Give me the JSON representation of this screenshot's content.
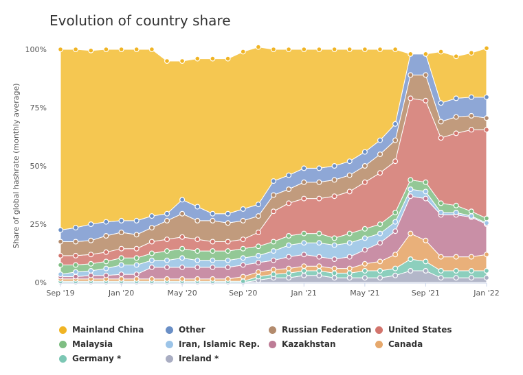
{
  "title": "Evolution of country share",
  "chart_data": {
    "type": "area",
    "stacked": true,
    "title": "Evolution of country share",
    "ylabel": "Share of global hashrate (monthly average)",
    "ylim": [
      0,
      100
    ],
    "yticks": [
      "0%",
      "25%",
      "50%",
      "75%",
      "100%"
    ],
    "xtick_labels": [
      "Sep '19",
      "Jan '20",
      "May '20",
      "Sep '20",
      "Jan '21",
      "May '21",
      "Sep '21",
      "Jan '22"
    ],
    "x": [
      "2019-09",
      "2019-10",
      "2019-11",
      "2019-12",
      "2020-01",
      "2020-02",
      "2020-03",
      "2020-04",
      "2020-05",
      "2020-06",
      "2020-07",
      "2020-08",
      "2020-09",
      "2020-10",
      "2020-11",
      "2020-12",
      "2021-01",
      "2021-02",
      "2021-03",
      "2021-04",
      "2021-05",
      "2021-06",
      "2021-07",
      "2021-08",
      "2021-09",
      "2021-10",
      "2021-11",
      "2021-12",
      "2022-01"
    ],
    "series": [
      {
        "name": "Ireland *",
        "color": "#b3b7c9",
        "values": [
          0,
          0,
          0,
          0,
          0,
          0,
          0,
          0,
          0,
          0,
          0,
          0,
          0,
          1,
          2,
          2,
          3,
          3,
          2,
          2,
          2,
          2,
          3,
          5,
          5,
          2,
          2,
          2,
          2
        ]
      },
      {
        "name": "Germany *",
        "color": "#8ccfbd",
        "values": [
          0.5,
          0.5,
          0.5,
          0.5,
          0.5,
          0.5,
          0.5,
          0.5,
          0.5,
          0.5,
          0.5,
          0.5,
          0.5,
          1.5,
          1.5,
          2,
          2,
          2,
          2,
          2,
          3,
          3,
          3,
          5,
          4,
          3,
          3,
          3,
          3
        ]
      },
      {
        "name": "Canada",
        "color": "#e9b07a",
        "values": [
          1,
          1,
          1,
          1,
          1,
          1,
          1,
          1,
          1,
          1,
          1,
          1,
          2,
          2,
          2,
          2,
          2,
          2,
          2,
          2,
          3,
          4,
          6,
          11,
          9,
          6,
          6,
          6,
          7
        ]
      },
      {
        "name": "Kazakhstan",
        "color": "#c98fa6",
        "values": [
          1,
          1,
          1.5,
          1.5,
          2,
          2,
          5,
          5,
          5,
          5,
          5,
          5,
          5,
          4,
          4,
          5,
          5,
          4,
          4,
          5,
          6,
          8,
          10,
          16,
          18,
          18,
          18,
          17,
          13
        ]
      },
      {
        "name": "Iran, Islamic Rep.",
        "color": "#a6cbe8",
        "values": [
          1,
          2,
          2,
          3,
          4,
          4,
          3,
          3,
          4,
          3,
          3,
          3,
          3,
          3,
          4,
          5,
          5,
          6,
          6,
          6,
          5,
          4,
          4,
          3,
          3,
          1,
          1,
          0.5,
          0.5
        ]
      },
      {
        "name": "Malaysia",
        "color": "#93c896",
        "values": [
          4,
          3,
          3,
          3,
          3,
          3,
          3,
          4,
          4,
          4,
          4,
          4,
          4,
          4,
          4,
          4,
          4,
          4,
          3,
          4,
          4,
          4,
          4,
          4,
          4,
          4,
          3,
          2,
          2
        ]
      },
      {
        "name": "United States",
        "color": "#d98b84",
        "values": [
          4,
          4,
          4,
          4,
          4,
          4,
          5,
          5,
          5,
          5,
          4,
          4,
          4,
          6,
          13,
          14,
          15,
          15,
          18,
          18,
          20,
          22,
          22,
          35,
          35,
          28,
          31,
          35,
          38
        ]
      },
      {
        "name": "Russian Federation",
        "color": "#c19b7d",
        "values": [
          6,
          6,
          6,
          7,
          7,
          6,
          6,
          8,
          10,
          8,
          9,
          8,
          8,
          7,
          7,
          6,
          7,
          7,
          7,
          7,
          7,
          8,
          9,
          10,
          11,
          7,
          7,
          6,
          5
        ]
      },
      {
        "name": "Other",
        "color": "#8ea7d6",
        "values": [
          5,
          6,
          7,
          6,
          5,
          6,
          5,
          3,
          6,
          6,
          3,
          4,
          5,
          5,
          6,
          6,
          6,
          6,
          6,
          6,
          6,
          6,
          7,
          9,
          9,
          8,
          8,
          8,
          9
        ]
      },
      {
        "name": "Mainland China",
        "color": "#f5c751",
        "values": [
          77.5,
          76.5,
          74.5,
          74,
          73.5,
          73.5,
          71.5,
          65.5,
          59.5,
          63.5,
          66.5,
          66.5,
          67.5,
          67.5,
          56.5,
          54,
          51,
          51,
          50,
          48,
          44,
          39,
          32,
          0,
          0,
          22,
          18,
          19,
          21
        ]
      }
    ],
    "legend": [
      {
        "name": "Mainland China",
        "color": "#f0b424"
      },
      {
        "name": "Other",
        "color": "#6a8fc6"
      },
      {
        "name": "Russian Federation",
        "color": "#b38b6d"
      },
      {
        "name": "United States",
        "color": "#d2746c"
      },
      {
        "name": "Malaysia",
        "color": "#7fbe83"
      },
      {
        "name": "Iran, Islamic Rep.",
        "color": "#9cc4e8"
      },
      {
        "name": "Kazakhstan",
        "color": "#bd7c96"
      },
      {
        "name": "Canada",
        "color": "#e6a86c"
      },
      {
        "name": "Germany *",
        "color": "#7cc7b4"
      },
      {
        "name": "Ireland *",
        "color": "#a9adc2"
      }
    ],
    "legend_position": "bottom",
    "grid": false
  }
}
